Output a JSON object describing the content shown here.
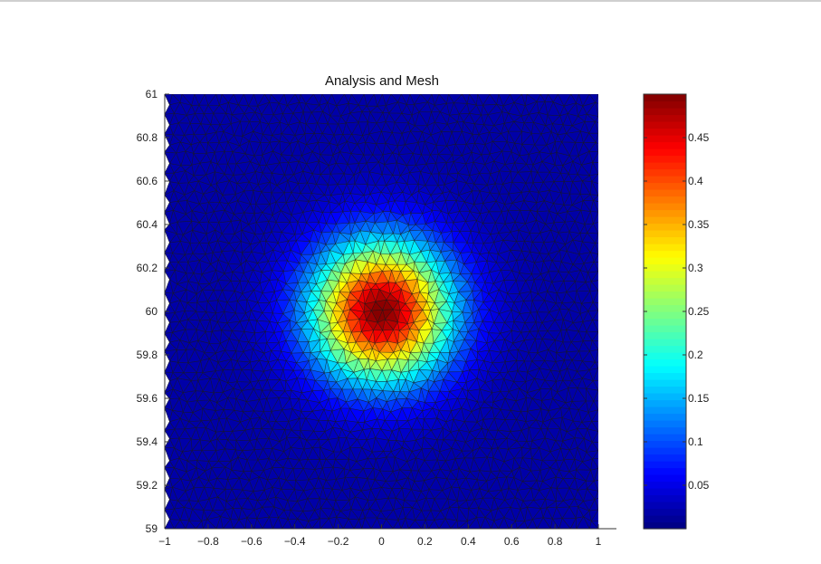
{
  "chart_data": {
    "type": "heatmap",
    "title": "Analysis and Mesh",
    "xlabel": "",
    "ylabel": "",
    "xlim": [
      -1,
      1
    ],
    "ylim": [
      59,
      61
    ],
    "x_ticks": [
      "−1",
      "−0.8",
      "−0.6",
      "−0.4",
      "−0.2",
      "0",
      "0.2",
      "0.4",
      "0.6",
      "0.8",
      "1"
    ],
    "x_tick_values": [
      -1,
      -0.8,
      -0.6,
      -0.4,
      -0.2,
      0,
      0.2,
      0.4,
      0.6,
      0.8,
      1
    ],
    "y_ticks": [
      "59",
      "59.2",
      "59.4",
      "59.6",
      "59.8",
      "60",
      "60.2",
      "60.4",
      "60.6",
      "60.8",
      "61"
    ],
    "y_tick_values": [
      59,
      59.2,
      59.4,
      59.6,
      59.8,
      60,
      60.2,
      60.4,
      60.6,
      60.8,
      61
    ],
    "colorbar": {
      "range": [
        0,
        0.5
      ],
      "ticks": [
        "0.05",
        "0.1",
        "0.15",
        "0.2",
        "0.25",
        "0.3",
        "0.35",
        "0.4",
        "0.45"
      ],
      "tick_values": [
        0.05,
        0.1,
        0.15,
        0.2,
        0.25,
        0.3,
        0.35,
        0.4,
        0.45
      ],
      "colormap": "jet"
    },
    "field": {
      "shape": "gaussian",
      "center": [
        0,
        60
      ],
      "peak": 0.5,
      "baseline": 0.02,
      "sigma_x": 0.22,
      "sigma_y": 0.22
    },
    "mesh": {
      "type": "triangular",
      "visible": true,
      "edge_color": "#1a1a1a"
    },
    "grid": false
  }
}
